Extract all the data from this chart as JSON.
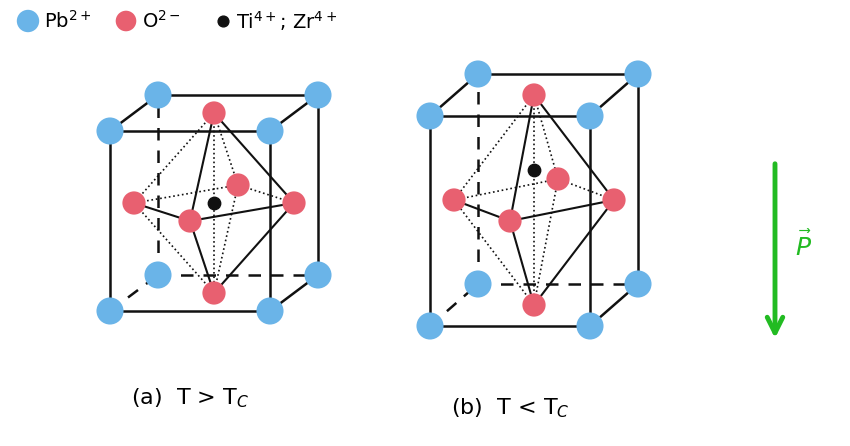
{
  "background_color": "#ffffff",
  "legend_fontsize": 14,
  "label_fontsize": 16,
  "Pb_color": "#6ab4e8",
  "O_color": "#e86070",
  "Ti_color": "#111111",
  "Pb_size": 380,
  "O_size": 280,
  "Ti_size": 80,
  "cube_color": "#111111",
  "cube_lw": 1.8,
  "oct_solid_lw": 1.5,
  "oct_dot_lw": 1.2,
  "arrow_color": "#22bb22",
  "arrow_label": "$\\vec{P}$",
  "label_a": "(a)  T > T$_C$",
  "label_b": "(b)  T < T$_C$"
}
